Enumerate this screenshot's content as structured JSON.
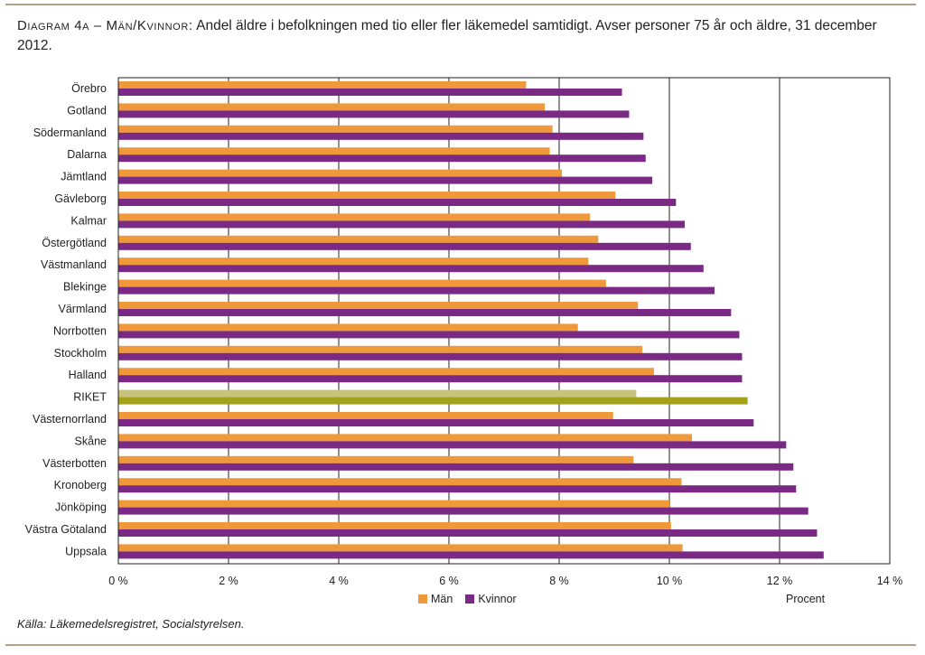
{
  "title": {
    "label": "Diagram 4a – Män/Kvinnor:",
    "text": "Andel äldre i befolkningen med tio eller fler läkemedel samtidigt. Avser personer 75 år och äldre, 31 december 2012."
  },
  "source": "Källa: Läkemedelsregistret, Socialstyrelsen.",
  "axis_unit_label": "Procent",
  "colors": {
    "man": "#f0993a",
    "kvinnor": "#7a2a84",
    "riket_man": "#c7c37c",
    "riket_kvinnor": "#a3a21a",
    "frame": "#222222",
    "rule": "#b4a089"
  },
  "chart_data": {
    "type": "bar",
    "orientation": "horizontal",
    "categories": [
      "Örebro",
      "Gotland",
      "Södermanland",
      "Dalarna",
      "Jämtland",
      "Gävleborg",
      "Kalmar",
      "Östergötland",
      "Västmanland",
      "Blekinge",
      "Värmland",
      "Norrbotten",
      "Stockholm",
      "Halland",
      "RIKET",
      "Västernorrland",
      "Skåne",
      "Västerbotten",
      "Kronoberg",
      "Jönköping",
      "Västra Götaland",
      "Uppsala"
    ],
    "highlight_category": "RIKET",
    "series": [
      {
        "name": "Män",
        "values": [
          7.4,
          7.74,
          7.88,
          7.83,
          8.05,
          9.02,
          8.56,
          8.71,
          8.53,
          8.85,
          9.43,
          8.34,
          9.51,
          9.72,
          9.4,
          8.98,
          10.41,
          9.35,
          10.22,
          10.0,
          10.03,
          10.24
        ]
      },
      {
        "name": "Kvinnor",
        "values": [
          9.14,
          9.27,
          9.53,
          9.57,
          9.69,
          10.12,
          10.28,
          10.39,
          10.62,
          10.82,
          11.12,
          11.27,
          11.32,
          11.32,
          11.42,
          11.53,
          12.12,
          12.25,
          12.3,
          12.52,
          12.68,
          12.8
        ]
      }
    ],
    "xlim": [
      0,
      14
    ],
    "xticks": [
      0,
      2,
      4,
      6,
      8,
      10,
      12,
      14
    ],
    "tick_suffix": " %",
    "xlabel": "Procent",
    "legend": [
      "Män",
      "Kvinnor"
    ],
    "legend_position": "bottom",
    "grid": "vertical"
  }
}
